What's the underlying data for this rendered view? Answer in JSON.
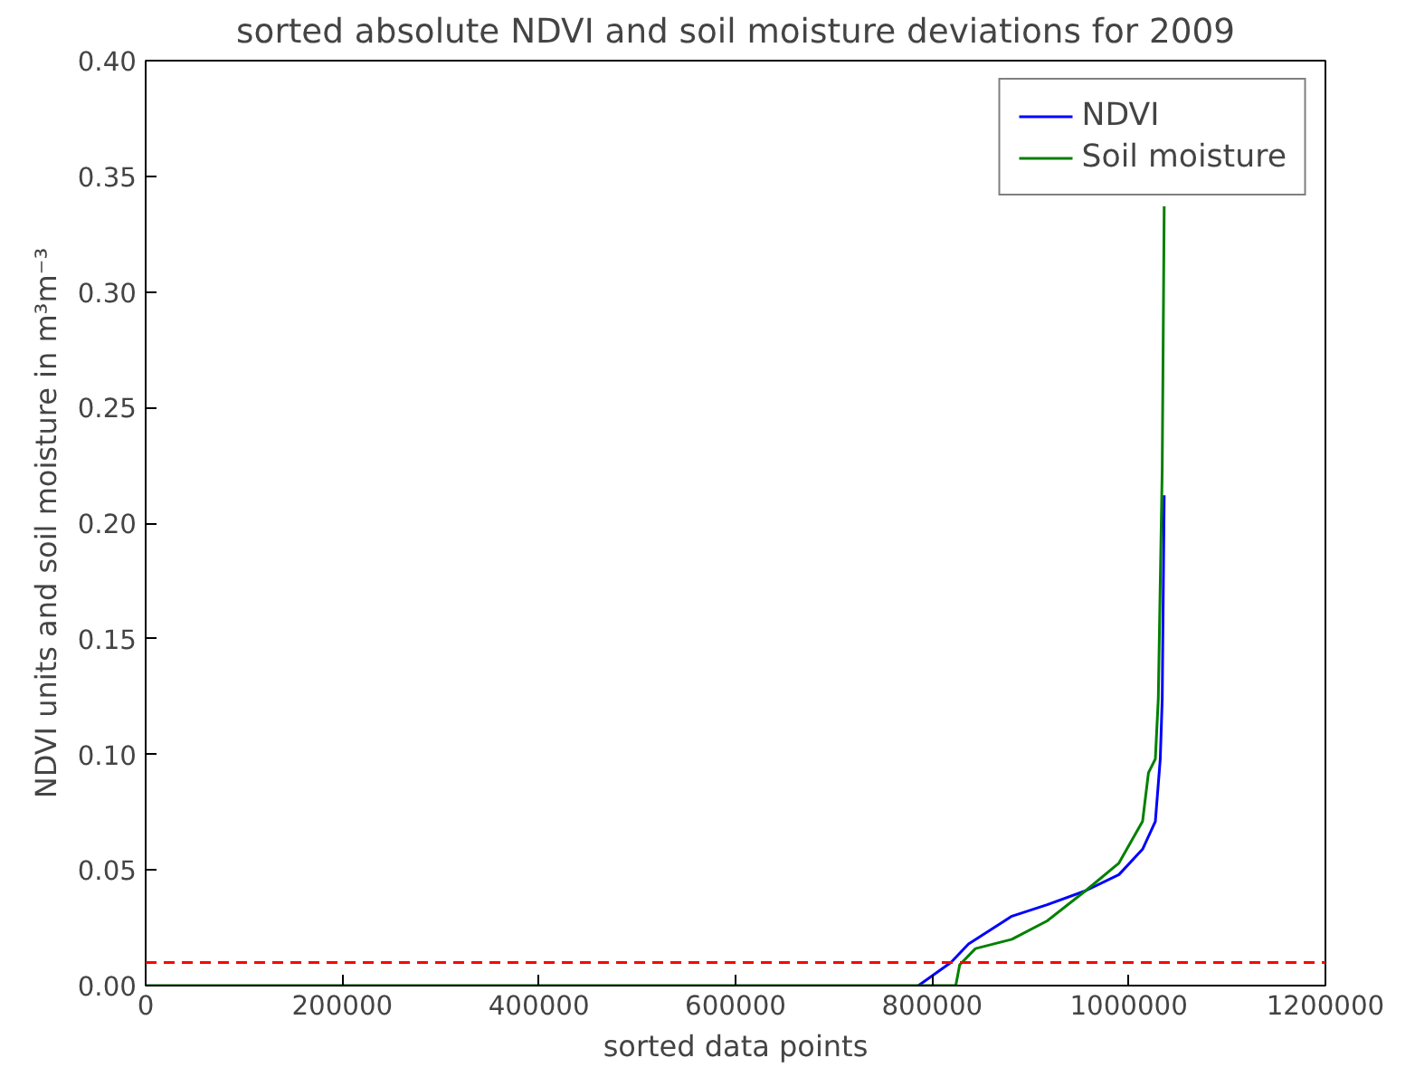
{
  "chart_data": {
    "type": "line",
    "title": "sorted absolute NDVI and soil moisture deviations for 2009",
    "xlabel": "sorted data points",
    "ylabel": "NDVI units and soil moisture in m³m⁻³",
    "series": [
      {
        "name": "NDVI",
        "color": "#0000ff",
        "x": [
          786000,
          819000,
          837000,
          881000,
          917000,
          956000,
          990000,
          1014000,
          1027000,
          1032000,
          1034000,
          1036000
        ],
        "values": [
          0,
          0.01,
          0.018,
          0.03,
          0.035,
          0.041,
          0.048,
          0.059,
          0.071,
          0.098,
          0.124,
          0.212
        ]
      },
      {
        "name": "Soil moisture",
        "color": "#008000",
        "x": [
          0,
          824000,
          828000,
          844000,
          881000,
          917000,
          956000,
          990000,
          1014000,
          1020000,
          1027000,
          1030000,
          1034000,
          1036000
        ],
        "values": [
          0,
          0,
          0.009,
          0.016,
          0.02,
          0.028,
          0.041,
          0.053,
          0.071,
          0.092,
          0.098,
          0.124,
          0.224,
          0.337
        ]
      }
    ],
    "xlim": [
      0,
      1200000
    ],
    "ylim": [
      0,
      0.4
    ],
    "xticks": [
      0,
      200000,
      400000,
      600000,
      800000,
      1000000,
      1200000
    ],
    "yticks": [
      {
        "value": 0,
        "label": "0.00"
      },
      {
        "value": 0.05,
        "label": "0.05"
      },
      {
        "value": 0.1,
        "label": "0.10"
      },
      {
        "value": 0.15,
        "label": "0.15"
      },
      {
        "value": 0.2,
        "label": "0.20"
      },
      {
        "value": 0.25,
        "label": "0.25"
      },
      {
        "value": 0.3,
        "label": "0.30"
      },
      {
        "value": 0.35,
        "label": "0.35"
      },
      {
        "value": 0.4,
        "label": "0.40"
      }
    ],
    "ref_lines": [
      {
        "axis": "y",
        "value": 0.01,
        "color": "#ff0000",
        "line_style": "dashed"
      }
    ],
    "grid": false,
    "legend": "top right",
    "line_style": "solid",
    "marker": "none"
  }
}
